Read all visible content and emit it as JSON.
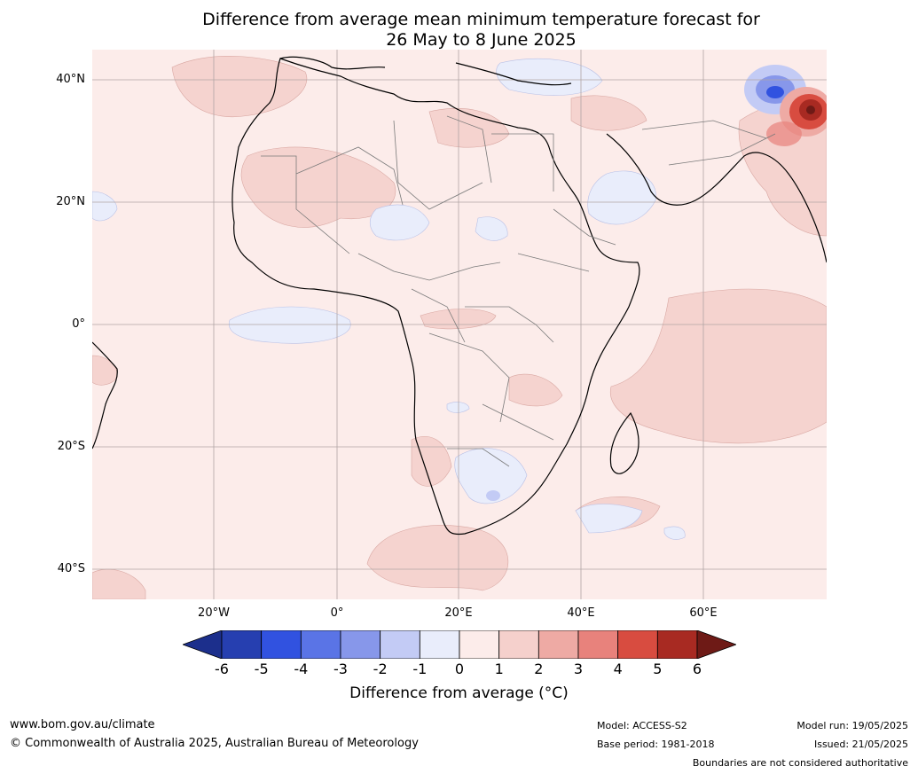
{
  "title": {
    "line1": "Difference from average mean minimum temperature forecast for",
    "line2": "26 May to 8 June 2025"
  },
  "map": {
    "lat_labels": [
      "40°N",
      "20°N",
      "0°",
      "20°S",
      "40°S"
    ],
    "lon_labels": [
      "20°W",
      "0°",
      "20°E",
      "40°E",
      "60°E"
    ]
  },
  "colorbar": {
    "ticks": [
      "-6",
      "-5",
      "-4",
      "-3",
      "-2",
      "-1",
      "0",
      "1",
      "2",
      "3",
      "4",
      "5",
      "6"
    ],
    "colors": [
      "#1c2f8c",
      "#263fb0",
      "#3152e0",
      "#5a74e6",
      "#8797ea",
      "#c3cbf5",
      "#e9edfb",
      "#fcecea",
      "#f5d0cc",
      "#eeaaa4",
      "#e8827c",
      "#d84c40",
      "#a82a22",
      "#6e1a16"
    ],
    "label": "Difference from average (°C)"
  },
  "footer": {
    "url": "www.bom.gov.au/climate",
    "copyright": "© Commonwealth of Australia 2025, Australian Bureau of Meteorology",
    "model": "Model: ACCESS-S2",
    "base_period": "Base period: 1981-2018",
    "model_run": "Model run: 19/05/2025",
    "issued": "Issued: 21/05/2025",
    "disclaimer": "Boundaries are not considered authoritative"
  }
}
